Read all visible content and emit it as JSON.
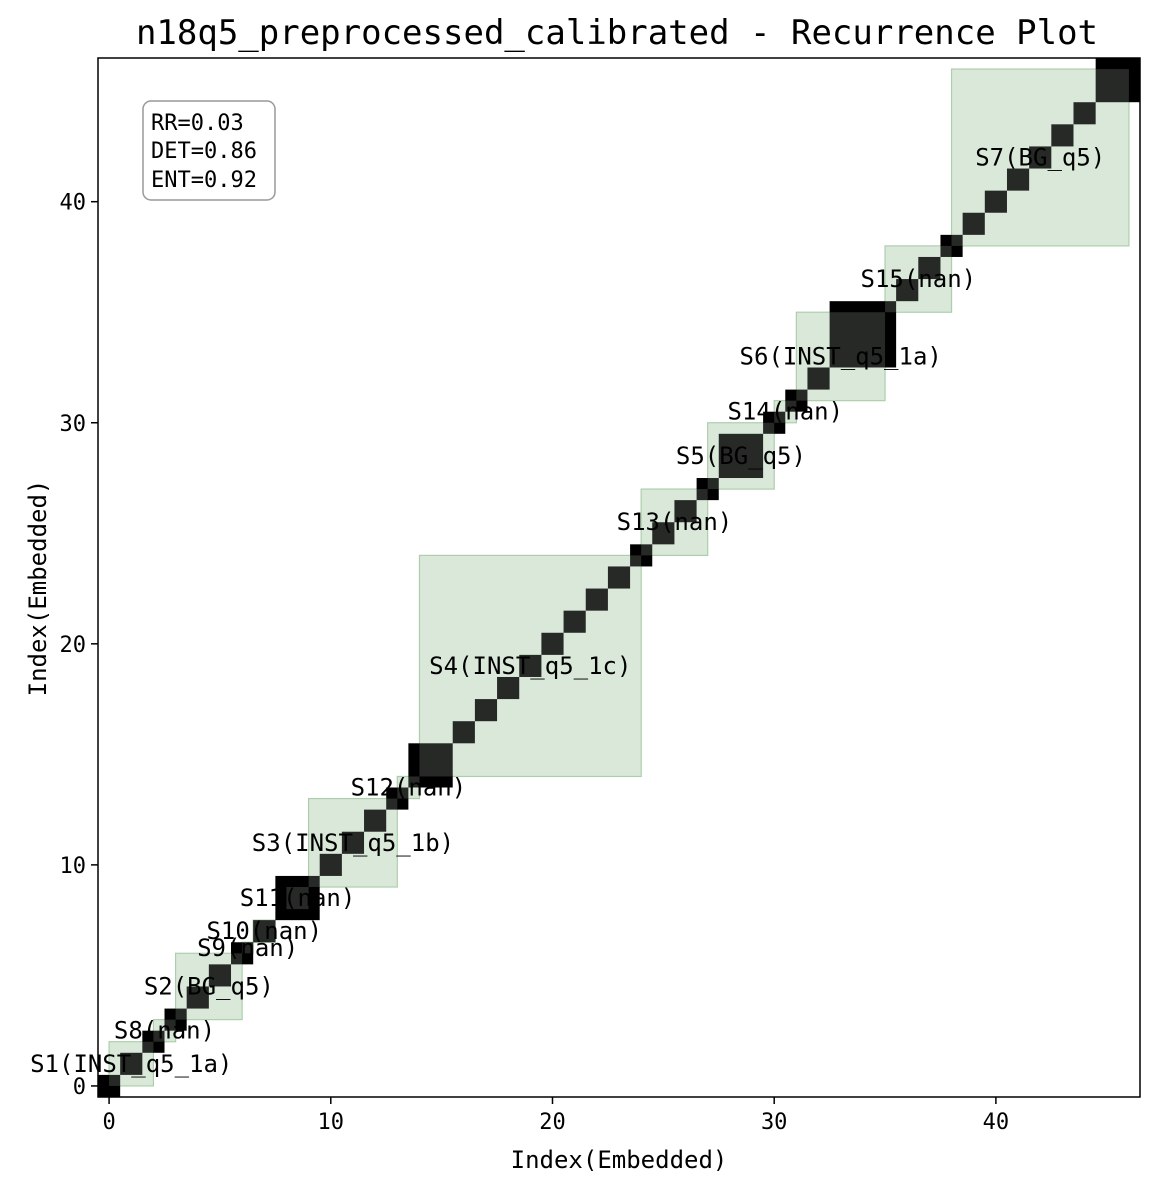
{
  "chart_data": {
    "type": "heatmap",
    "title": "n18q5_preprocessed_calibrated - Recurrence Plot",
    "xlabel": "Index(Embedded)",
    "ylabel": "Index(Embedded)",
    "xlim": [
      -0.5,
      46.5
    ],
    "ylim": [
      -0.5,
      46.5
    ],
    "xticks": [
      0,
      10,
      20,
      30,
      40
    ],
    "yticks": [
      0,
      10,
      20,
      30,
      40
    ],
    "stats": {
      "rr": "RR=0.03",
      "det": "DET=0.86",
      "ent": "ENT=0.92"
    },
    "stats_placement": "top-left",
    "colors": {
      "recurrence": "#000000",
      "segment_fill": "#d5e6d5",
      "segment_edge": "#a9cca9"
    },
    "recurrence_blocks": [
      [
        0,
        0
      ],
      [
        1,
        1
      ],
      [
        2,
        2
      ],
      [
        3,
        3
      ],
      [
        4,
        4
      ],
      [
        5,
        5
      ],
      [
        6,
        6
      ],
      [
        7,
        7
      ],
      [
        8,
        9
      ],
      [
        10,
        10
      ],
      [
        11,
        11
      ],
      [
        12,
        12
      ],
      [
        13,
        13
      ],
      [
        14,
        15
      ],
      [
        16,
        16
      ],
      [
        17,
        17
      ],
      [
        18,
        18
      ],
      [
        19,
        19
      ],
      [
        20,
        20
      ],
      [
        21,
        21
      ],
      [
        22,
        22
      ],
      [
        23,
        23
      ],
      [
        24,
        24
      ],
      [
        25,
        25
      ],
      [
        26,
        26
      ],
      [
        27,
        27
      ],
      [
        28,
        29
      ],
      [
        30,
        30
      ],
      [
        31,
        31
      ],
      [
        32,
        32
      ],
      [
        33,
        35
      ],
      [
        36,
        36
      ],
      [
        37,
        37
      ],
      [
        38,
        38
      ],
      [
        39,
        39
      ],
      [
        40,
        40
      ],
      [
        41,
        41
      ],
      [
        42,
        42
      ],
      [
        43,
        43
      ],
      [
        44,
        44
      ],
      [
        45,
        46
      ]
    ],
    "segments": [
      {
        "label": "S1(INST_q5_1a)",
        "start": 0,
        "end": 2
      },
      {
        "label": "S8(nan)",
        "start": 2,
        "end": 3
      },
      {
        "label": "S2(BG_q5)",
        "start": 3,
        "end": 6
      },
      {
        "label": "S9(nan)",
        "start": 6,
        "end": 6.5
      },
      {
        "label": "S10(nan)",
        "start": 6.5,
        "end": 7.5
      },
      {
        "label": "S11(nan)",
        "start": 8,
        "end": 9
      },
      {
        "label": "S3(INST_q5_1b)",
        "start": 9,
        "end": 13
      },
      {
        "label": "S12(nan)",
        "start": 13,
        "end": 14
      },
      {
        "label": "S4(INST_q5_1c)",
        "start": 14,
        "end": 24
      },
      {
        "label": "S13(nan)",
        "start": 24,
        "end": 27
      },
      {
        "label": "S5(BG_q5)",
        "start": 27,
        "end": 30
      },
      {
        "label": "S14(nan)",
        "start": 30,
        "end": 31
      },
      {
        "label": "S6(INST_q5_1a)",
        "start": 31,
        "end": 35
      },
      {
        "label": "S15(nan)",
        "start": 35,
        "end": 38
      },
      {
        "label": "S7(BG_q5)",
        "start": 38,
        "end": 46
      }
    ]
  }
}
